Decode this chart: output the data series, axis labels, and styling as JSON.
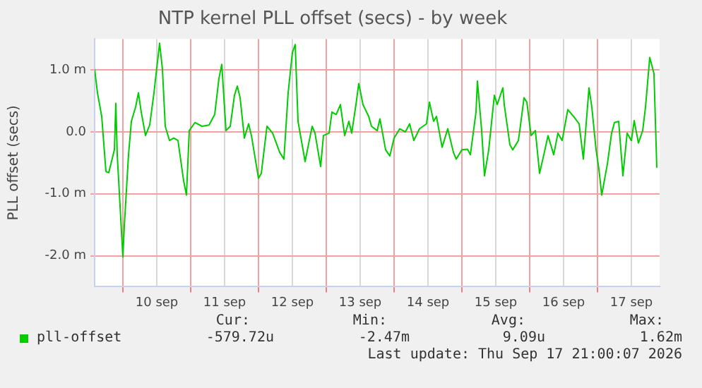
{
  "chart_data": {
    "type": "line",
    "title": "NTP kernel PLL offset (secs) - by week",
    "ylabel": "PLL offset (secs)",
    "x": [
      "2026-09-09T14:00",
      "2026-09-09T15:00",
      "2026-09-09T16:30",
      "2026-09-09T18:00",
      "2026-09-09T19:00",
      "2026-09-09T21:00",
      "2026-09-09T21:30",
      "2026-09-09T22:00",
      "2026-09-10T00:00",
      "2026-09-10T00:30",
      "2026-09-10T02:00",
      "2026-09-10T03:00",
      "2026-09-10T04:30",
      "2026-09-10T05:30",
      "2026-09-10T06:30",
      "2026-09-10T08:00",
      "2026-09-10T09:30",
      "2026-09-10T11:00",
      "2026-09-10T13:00",
      "2026-09-10T14:00",
      "2026-09-10T15:00",
      "2026-09-10T16:30",
      "2026-09-10T18:00",
      "2026-09-10T19:30",
      "2026-09-10T21:30",
      "2026-09-10T22:30",
      "2026-09-10T23:30",
      "2026-09-11T01:30",
      "2026-09-11T04:00",
      "2026-09-11T06:30",
      "2026-09-11T08:30",
      "2026-09-11T10:00",
      "2026-09-11T11:00",
      "2026-09-11T12:30",
      "2026-09-11T14:00",
      "2026-09-11T15:30",
      "2026-09-11T16:30",
      "2026-09-11T17:30",
      "2026-09-11T19:00",
      "2026-09-11T20:30",
      "2026-09-11T21:30",
      "2026-09-12T00:00",
      "2026-09-12T01:00",
      "2026-09-12T03:00",
      "2026-09-12T05:00",
      "2026-09-12T07:30",
      "2026-09-12T09:00",
      "2026-09-12T10:30",
      "2026-09-12T12:00",
      "2026-09-12T13:00",
      "2026-09-12T14:00",
      "2026-09-12T16:30",
      "2026-09-12T17:30",
      "2026-09-12T19:00",
      "2026-09-12T20:00",
      "2026-09-12T22:00",
      "2026-09-12T23:00",
      "2026-09-13T01:00",
      "2026-09-13T02:00",
      "2026-09-13T03:30",
      "2026-09-13T05:00",
      "2026-09-13T06:30",
      "2026-09-13T08:00",
      "2026-09-13T09:00",
      "2026-09-13T10:30",
      "2026-09-13T11:30",
      "2026-09-13T13:00",
      "2026-09-13T15:00",
      "2026-09-13T16:00",
      "2026-09-13T18:00",
      "2026-09-13T19:00",
      "2026-09-13T21:00",
      "2026-09-13T22:30",
      "2026-09-14T00:00",
      "2026-09-14T02:00",
      "2026-09-14T04:00",
      "2026-09-14T05:30",
      "2026-09-14T07:00",
      "2026-09-14T09:00",
      "2026-09-14T11:30",
      "2026-09-14T12:30",
      "2026-09-14T14:00",
      "2026-09-14T15:00",
      "2026-09-14T17:00",
      "2026-09-14T19:00",
      "2026-09-14T21:00",
      "2026-09-14T22:00",
      "2026-09-15T00:00",
      "2026-09-15T02:00",
      "2026-09-15T03:00",
      "2026-09-15T05:00",
      "2026-09-15T05:30",
      "2026-09-15T07:00",
      "2026-09-15T08:00",
      "2026-09-15T09:30",
      "2026-09-15T11:30",
      "2026-09-15T12:30",
      "2026-09-15T14:30",
      "2026-09-15T15:00",
      "2026-09-15T17:00",
      "2026-09-15T18:00",
      "2026-09-15T20:00",
      "2026-09-15T20:30",
      "2026-09-15T22:00",
      "2026-09-15T23:00",
      "2026-09-16T00:30",
      "2026-09-16T02:00",
      "2026-09-16T03:30",
      "2026-09-16T05:00",
      "2026-09-16T06:30",
      "2026-09-16T08:30",
      "2026-09-16T10:00",
      "2026-09-16T11:30",
      "2026-09-16T13:30",
      "2026-09-16T15:30",
      "2026-09-16T17:30",
      "2026-09-16T19:00",
      "2026-09-16T21:00",
      "2026-09-16T22:00",
      "2026-09-16T23:30",
      "2026-09-17T00:30",
      "2026-09-17T01:30",
      "2026-09-17T03:30",
      "2026-09-17T05:00",
      "2026-09-17T06:00",
      "2026-09-17T07:30",
      "2026-09-17T09:00",
      "2026-09-17T10:30",
      "2026-09-17T12:00",
      "2026-09-17T13:00",
      "2026-09-17T14:30",
      "2026-09-17T16:00",
      "2026-09-17T17:00",
      "2026-09-17T18:30",
      "2026-09-17T20:00",
      "2026-09-17T21:00"
    ],
    "series": [
      {
        "name": "pll-offset",
        "color": "#00cc00",
        "values": [
          1.01,
          0.63,
          0.25,
          -0.64,
          -0.66,
          -0.29,
          0.46,
          -0.37,
          -2.02,
          -1.52,
          -0.37,
          0.17,
          0.4,
          0.63,
          0.32,
          -0.06,
          0.11,
          0.63,
          1.43,
          1.01,
          0.09,
          -0.14,
          -0.1,
          -0.14,
          -0.79,
          -1.02,
          0.02,
          0.15,
          0.09,
          0.11,
          0.28,
          0.86,
          1.09,
          0.02,
          0.09,
          0.59,
          0.74,
          0.55,
          -0.1,
          0.13,
          -0.06,
          -0.75,
          -0.67,
          0.09,
          -0.02,
          -0.33,
          -0.44,
          0.63,
          1.28,
          1.41,
          0.17,
          -0.48,
          -0.25,
          0.09,
          -0.02,
          -0.56,
          -0.06,
          -0.02,
          0.32,
          0.28,
          0.44,
          -0.06,
          0.17,
          -0.02,
          0.44,
          0.78,
          0.44,
          0.25,
          0.09,
          0.02,
          0.21,
          -0.29,
          -0.39,
          -0.1,
          0.05,
          0,
          0.13,
          -0.14,
          0.05,
          0.13,
          0.48,
          0.17,
          0.25,
          -0.25,
          0.05,
          -0.33,
          -0.44,
          -0.29,
          -0.28,
          -0.37,
          0.32,
          0.82,
          0.02,
          -0.71,
          -0.29,
          0.59,
          0.44,
          0.71,
          0.44,
          -0.21,
          -0.29,
          -0.14,
          0.02,
          0.55,
          0.48,
          -0.06,
          0.02,
          -0.67,
          -0.37,
          -0.06,
          -0.37,
          -0.02,
          -0.14,
          0.36,
          0.25,
          0.13,
          -0.44,
          0.71,
          0.4,
          -0.29,
          -0.6,
          -1.02,
          -0.52,
          -0.02,
          0.15,
          0.17,
          -0.71,
          -0.02,
          -0.14,
          0.18,
          -0.18,
          0.02,
          0.4,
          1.2,
          0.94,
          -0.58
        ]
      }
    ],
    "xlim": [
      "2026-09-09T14:00",
      "2026-09-17T22:00"
    ],
    "xticks": [
      {
        "value": "2026-09-10T00:00",
        "label": null
      },
      {
        "value": "2026-09-10T12:00",
        "label": "10 sep"
      },
      {
        "value": "2026-09-11T00:00",
        "label": null
      },
      {
        "value": "2026-09-11T12:00",
        "label": "11 sep"
      },
      {
        "value": "2026-09-12T00:00",
        "label": null
      },
      {
        "value": "2026-09-12T12:00",
        "label": "12 sep"
      },
      {
        "value": "2026-09-13T00:00",
        "label": null
      },
      {
        "value": "2026-09-13T12:00",
        "label": "13 sep"
      },
      {
        "value": "2026-09-14T00:00",
        "label": null
      },
      {
        "value": "2026-09-14T12:00",
        "label": "14 sep"
      },
      {
        "value": "2026-09-15T00:00",
        "label": null
      },
      {
        "value": "2026-09-15T12:00",
        "label": "15 sep"
      },
      {
        "value": "2026-09-16T00:00",
        "label": null
      },
      {
        "value": "2026-09-16T12:00",
        "label": "16 sep"
      },
      {
        "value": "2026-09-17T00:00",
        "label": null
      },
      {
        "value": "2026-09-17T12:00",
        "label": "17 sep"
      }
    ],
    "ylim": [
      -2.5,
      1.5
    ],
    "yticks": [
      {
        "value": -2,
        "label": "-2.0 m"
      },
      {
        "value": -1,
        "label": "-1.0 m"
      },
      {
        "value": 0,
        "label": "0.0"
      },
      {
        "value": 1,
        "label": "1.0 m"
      }
    ],
    "grid": true,
    "legend": "bottom",
    "marker": "none",
    "line_style": "solid",
    "annotations": [
      "Cur:",
      "-579.72u",
      "Min:",
      "-2.47m",
      "Avg:",
      "9.09u",
      "Max:",
      "1.62m",
      "Last update: Thu Sep 17 21:00:07 2026"
    ]
  }
}
